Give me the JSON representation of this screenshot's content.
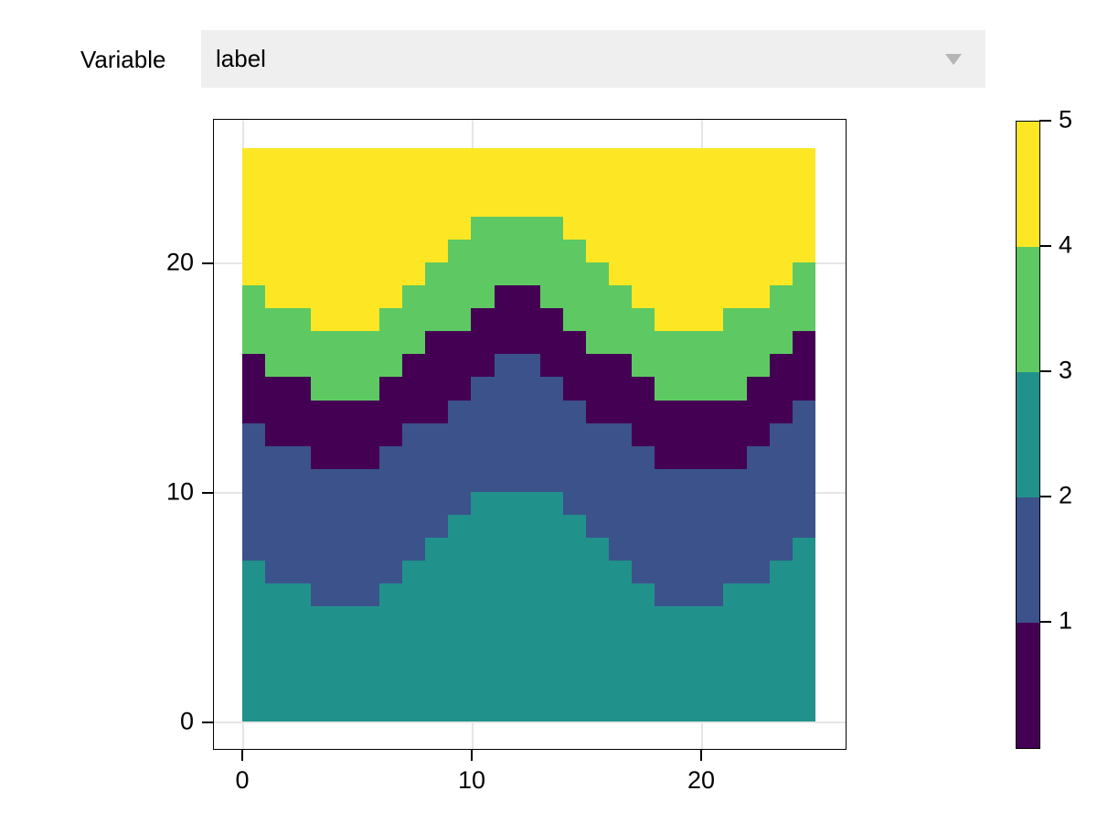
{
  "controls": {
    "variable_label": "Variable",
    "dropdown_value": "label"
  },
  "chart_data": {
    "type": "heatmap",
    "title": "",
    "xlabel": "",
    "ylabel": "",
    "x_range": [
      0,
      25
    ],
    "y_range": [
      0,
      25
    ],
    "x_ticks": [
      0,
      10,
      20
    ],
    "y_ticks": [
      0,
      10,
      20
    ],
    "grid": true,
    "n_columns": 25,
    "bands_bottom_to_top": [
      {
        "value": 3,
        "name": "teal",
        "color": "#21918c"
      },
      {
        "value": 2,
        "name": "blue",
        "color": "#3b528b"
      },
      {
        "value": 1,
        "name": "purple",
        "color": "#440154"
      },
      {
        "value": 4,
        "name": "green",
        "color": "#5ec962"
      },
      {
        "value": 5,
        "name": "yellow",
        "color": "#fde725"
      }
    ],
    "band_top_boundaries_per_column": {
      "teal_top": [
        7,
        6,
        6,
        5,
        5,
        5,
        6,
        7,
        8,
        9,
        10,
        10,
        10,
        10,
        9,
        8,
        7,
        6,
        5,
        5,
        5,
        6,
        6,
        7,
        8
      ],
      "blue_top": [
        13,
        12,
        12,
        11,
        11,
        11,
        12,
        13,
        13,
        14,
        15,
        16,
        16,
        15,
        14,
        13,
        13,
        12,
        11,
        11,
        11,
        11,
        12,
        13,
        14
      ],
      "purple_top": [
        16,
        15,
        15,
        14,
        14,
        14,
        15,
        16,
        17,
        17,
        18,
        19,
        19,
        18,
        17,
        16,
        16,
        15,
        14,
        14,
        14,
        14,
        15,
        16,
        17
      ],
      "green_top": [
        19,
        18,
        18,
        17,
        17,
        17,
        18,
        19,
        20,
        21,
        22,
        22,
        22,
        22,
        21,
        20,
        19,
        18,
        17,
        17,
        17,
        18,
        18,
        19,
        20
      ],
      "yellow_top_constant": 25
    },
    "colorbar": {
      "range": [
        0,
        5
      ],
      "ticks": [
        1,
        2,
        3,
        4,
        5
      ],
      "segment_colors_bottom_to_top": [
        "#440154",
        "#3b528b",
        "#21918c",
        "#5ec962",
        "#fde725"
      ]
    }
  }
}
